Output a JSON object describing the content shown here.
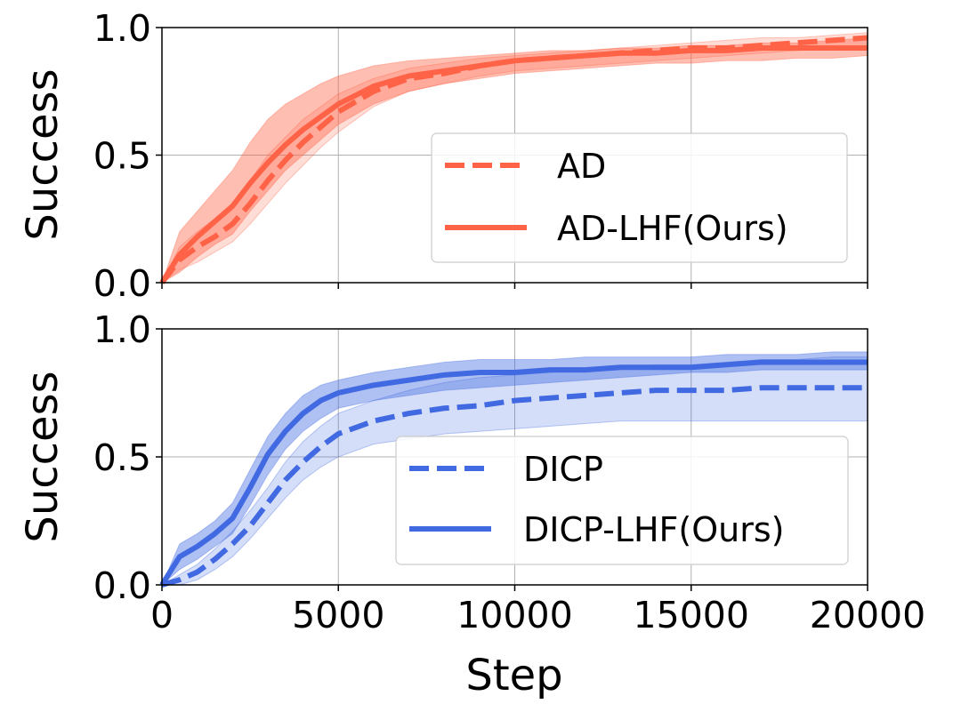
{
  "chart_data": [
    {
      "type": "line",
      "id": "top",
      "title": "",
      "xlabel": "",
      "ylabel": "Success",
      "xlim": [
        0,
        20000
      ],
      "ylim": [
        0,
        1.0
      ],
      "yticks": [
        0.0,
        0.5,
        1.0
      ],
      "ytick_labels": [
        "0.0",
        "0.5",
        "1.0"
      ],
      "xticks": [
        0,
        5000,
        10000,
        15000,
        20000
      ],
      "xtick_labels": [],
      "grid": true,
      "legend_position": "center-right",
      "x": [
        0,
        500,
        1000,
        1500,
        2000,
        2500,
        3000,
        3500,
        4000,
        4500,
        5000,
        6000,
        7000,
        8000,
        9000,
        10000,
        11000,
        12000,
        13000,
        14000,
        15000,
        16000,
        17000,
        18000,
        19000,
        20000
      ],
      "series": [
        {
          "name": "AD",
          "style": "dashed",
          "color": "#ff6347",
          "values": [
            0.0,
            0.09,
            0.14,
            0.18,
            0.23,
            0.31,
            0.4,
            0.48,
            0.55,
            0.61,
            0.67,
            0.75,
            0.8,
            0.82,
            0.85,
            0.87,
            0.88,
            0.89,
            0.9,
            0.91,
            0.92,
            0.92,
            0.93,
            0.94,
            0.95,
            0.96
          ],
          "lower": [
            0.0,
            0.05,
            0.08,
            0.12,
            0.16,
            0.23,
            0.31,
            0.39,
            0.46,
            0.53,
            0.59,
            0.69,
            0.75,
            0.78,
            0.81,
            0.83,
            0.84,
            0.85,
            0.86,
            0.87,
            0.88,
            0.89,
            0.9,
            0.91,
            0.92,
            0.93
          ],
          "upper": [
            0.0,
            0.14,
            0.2,
            0.25,
            0.3,
            0.4,
            0.5,
            0.57,
            0.64,
            0.69,
            0.74,
            0.8,
            0.84,
            0.86,
            0.88,
            0.89,
            0.9,
            0.91,
            0.92,
            0.93,
            0.94,
            0.95,
            0.96,
            0.96,
            0.97,
            0.98
          ]
        },
        {
          "name": "AD-LHF(Ours)",
          "style": "solid",
          "color": "#ff6347",
          "values": [
            0.0,
            0.11,
            0.18,
            0.24,
            0.3,
            0.39,
            0.47,
            0.54,
            0.6,
            0.65,
            0.7,
            0.77,
            0.81,
            0.83,
            0.85,
            0.87,
            0.88,
            0.89,
            0.9,
            0.9,
            0.91,
            0.91,
            0.92,
            0.92,
            0.92,
            0.92
          ],
          "lower": [
            0.0,
            0.04,
            0.1,
            0.15,
            0.19,
            0.28,
            0.36,
            0.44,
            0.5,
            0.56,
            0.62,
            0.7,
            0.75,
            0.78,
            0.8,
            0.82,
            0.83,
            0.84,
            0.85,
            0.86,
            0.86,
            0.87,
            0.87,
            0.88,
            0.88,
            0.89
          ],
          "upper": [
            0.0,
            0.2,
            0.28,
            0.36,
            0.44,
            0.55,
            0.64,
            0.7,
            0.74,
            0.78,
            0.81,
            0.85,
            0.87,
            0.88,
            0.89,
            0.9,
            0.91,
            0.91,
            0.92,
            0.92,
            0.93,
            0.93,
            0.94,
            0.94,
            0.95,
            0.96
          ]
        }
      ]
    },
    {
      "type": "line",
      "id": "bottom",
      "title": "",
      "xlabel": "Step",
      "ylabel": "Success",
      "xlim": [
        0,
        20000
      ],
      "ylim": [
        0,
        1.0
      ],
      "yticks": [
        0.0,
        0.5,
        1.0
      ],
      "ytick_labels": [
        "0.0",
        "0.5",
        "1.0"
      ],
      "xticks": [
        0,
        5000,
        10000,
        15000,
        20000
      ],
      "xtick_labels": [
        "0",
        "5000",
        "10000",
        "15000",
        "20000"
      ],
      "grid": true,
      "legend_position": "lower-right",
      "x": [
        0,
        500,
        1000,
        1500,
        2000,
        2500,
        3000,
        3500,
        4000,
        4500,
        5000,
        6000,
        7000,
        8000,
        9000,
        10000,
        11000,
        12000,
        13000,
        14000,
        15000,
        16000,
        17000,
        18000,
        19000,
        20000
      ],
      "series": [
        {
          "name": "DICP",
          "style": "dashed",
          "color": "#4169e1",
          "values": [
            0.0,
            0.02,
            0.05,
            0.1,
            0.16,
            0.23,
            0.32,
            0.41,
            0.48,
            0.54,
            0.59,
            0.64,
            0.67,
            0.69,
            0.7,
            0.72,
            0.73,
            0.74,
            0.75,
            0.76,
            0.76,
            0.76,
            0.77,
            0.77,
            0.77,
            0.77
          ],
          "lower": [
            0.0,
            0.0,
            0.02,
            0.06,
            0.11,
            0.18,
            0.26,
            0.34,
            0.41,
            0.46,
            0.5,
            0.55,
            0.57,
            0.59,
            0.6,
            0.61,
            0.62,
            0.63,
            0.64,
            0.64,
            0.64,
            0.64,
            0.64,
            0.64,
            0.64,
            0.64
          ],
          "upper": [
            0.0,
            0.04,
            0.08,
            0.14,
            0.21,
            0.29,
            0.38,
            0.48,
            0.56,
            0.62,
            0.67,
            0.72,
            0.76,
            0.79,
            0.81,
            0.82,
            0.83,
            0.84,
            0.85,
            0.86,
            0.86,
            0.87,
            0.88,
            0.88,
            0.89,
            0.89
          ]
        },
        {
          "name": "DICP-LHF(Ours)",
          "style": "solid",
          "color": "#4169e1",
          "values": [
            0.0,
            0.11,
            0.15,
            0.2,
            0.26,
            0.38,
            0.51,
            0.6,
            0.67,
            0.72,
            0.75,
            0.78,
            0.8,
            0.82,
            0.83,
            0.83,
            0.84,
            0.84,
            0.85,
            0.85,
            0.85,
            0.86,
            0.87,
            0.87,
            0.87,
            0.87
          ],
          "lower": [
            0.0,
            0.06,
            0.1,
            0.15,
            0.2,
            0.31,
            0.43,
            0.53,
            0.6,
            0.65,
            0.69,
            0.72,
            0.74,
            0.76,
            0.77,
            0.78,
            0.79,
            0.8,
            0.81,
            0.82,
            0.83,
            0.83,
            0.84,
            0.84,
            0.84,
            0.84
          ],
          "upper": [
            0.0,
            0.16,
            0.2,
            0.25,
            0.32,
            0.45,
            0.58,
            0.67,
            0.74,
            0.78,
            0.8,
            0.83,
            0.85,
            0.87,
            0.88,
            0.88,
            0.88,
            0.89,
            0.89,
            0.89,
            0.89,
            0.9,
            0.9,
            0.9,
            0.91,
            0.91
          ]
        }
      ]
    }
  ]
}
